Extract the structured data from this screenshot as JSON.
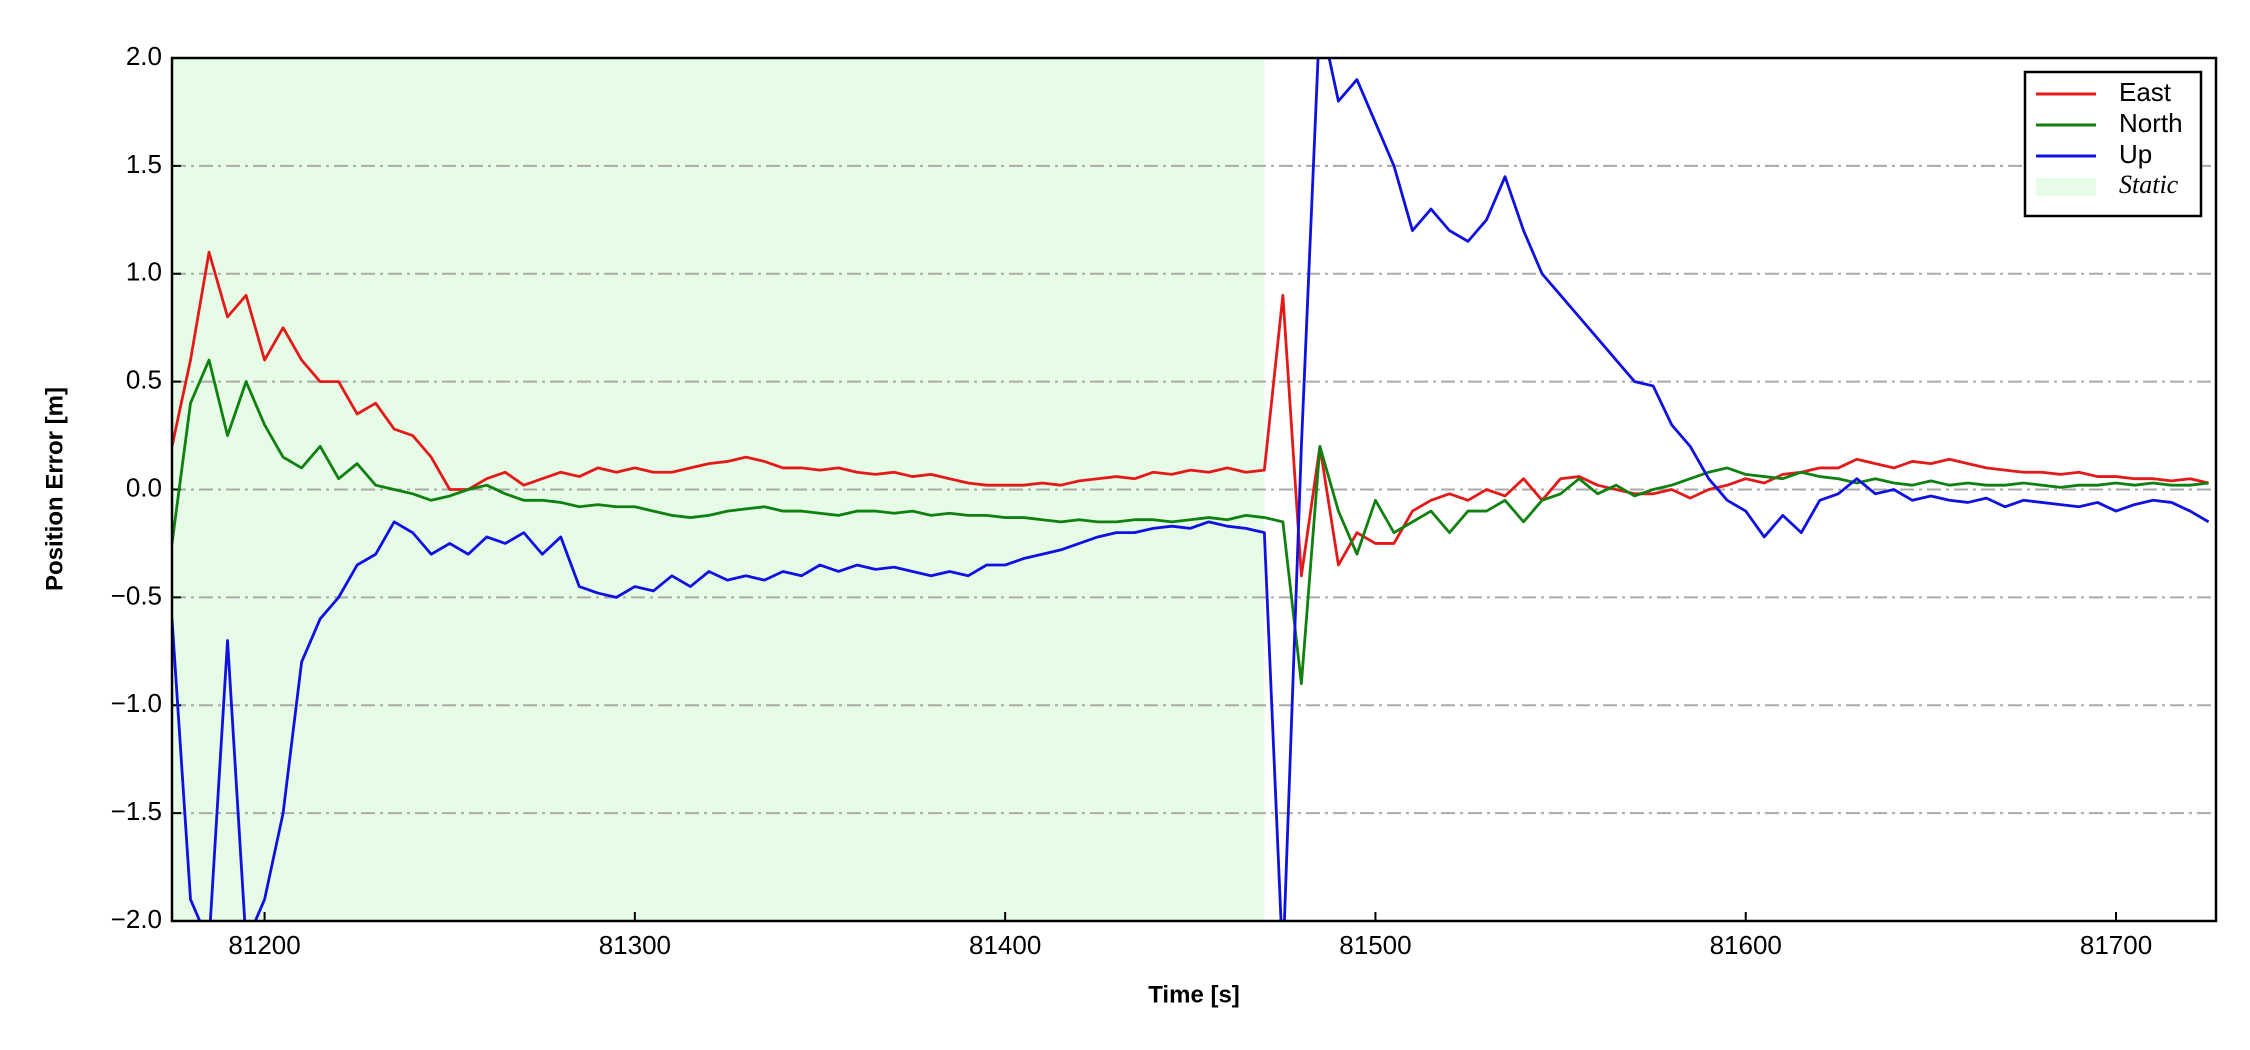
{
  "chart_data": {
    "type": "line",
    "xlabel": "Time [s]",
    "ylabel": "Position Error [m]",
    "x": [
      81175,
      81180,
      81185,
      81190,
      81195,
      81200,
      81205,
      81210,
      81215,
      81220,
      81225,
      81230,
      81235,
      81240,
      81245,
      81250,
      81255,
      81260,
      81265,
      81270,
      81275,
      81280,
      81285,
      81290,
      81295,
      81300,
      81305,
      81310,
      81315,
      81320,
      81325,
      81330,
      81335,
      81340,
      81345,
      81350,
      81355,
      81360,
      81365,
      81370,
      81375,
      81380,
      81385,
      81390,
      81395,
      81400,
      81405,
      81410,
      81415,
      81420,
      81425,
      81430,
      81435,
      81440,
      81445,
      81450,
      81455,
      81460,
      81465,
      81470,
      81475,
      81480,
      81485,
      81490,
      81495,
      81500,
      81505,
      81510,
      81515,
      81520,
      81525,
      81530,
      81535,
      81540,
      81545,
      81550,
      81555,
      81560,
      81565,
      81570,
      81575,
      81580,
      81585,
      81590,
      81595,
      81600,
      81605,
      81610,
      81615,
      81620,
      81625,
      81630,
      81635,
      81640,
      81645,
      81650,
      81655,
      81660,
      81665,
      81670,
      81675,
      81680,
      81685,
      81690,
      81695,
      81700,
      81705,
      81710,
      81715,
      81720,
      81725
    ],
    "series": [
      {
        "name": "East",
        "color": "#e31a1a",
        "values": [
          0.2,
          0.6,
          1.1,
          0.8,
          0.9,
          0.6,
          0.75,
          0.6,
          0.5,
          0.5,
          0.35,
          0.4,
          0.28,
          0.25,
          0.15,
          0.0,
          0.0,
          0.05,
          0.08,
          0.02,
          0.05,
          0.08,
          0.06,
          0.1,
          0.08,
          0.1,
          0.08,
          0.08,
          0.1,
          0.12,
          0.13,
          0.15,
          0.13,
          0.1,
          0.1,
          0.09,
          0.1,
          0.08,
          0.07,
          0.08,
          0.06,
          0.07,
          0.05,
          0.03,
          0.02,
          0.02,
          0.02,
          0.03,
          0.02,
          0.04,
          0.05,
          0.06,
          0.05,
          0.08,
          0.07,
          0.09,
          0.08,
          0.1,
          0.08,
          0.09,
          0.9,
          -0.4,
          0.2,
          -0.35,
          -0.2,
          -0.25,
          -0.25,
          -0.1,
          -0.05,
          -0.02,
          -0.05,
          0.0,
          -0.03,
          0.05,
          -0.05,
          0.05,
          0.06,
          0.02,
          0.0,
          -0.02,
          -0.02,
          0.0,
          -0.04,
          0.0,
          0.02,
          0.05,
          0.03,
          0.07,
          0.08,
          0.1,
          0.1,
          0.14,
          0.12,
          0.1,
          0.13,
          0.12,
          0.14,
          0.12,
          0.1,
          0.09,
          0.08,
          0.08,
          0.07,
          0.08,
          0.06,
          0.06,
          0.05,
          0.05,
          0.04,
          0.05,
          0.03
        ]
      },
      {
        "name": "North",
        "color": "#108010",
        "values": [
          -0.25,
          0.4,
          0.6,
          0.25,
          0.5,
          0.3,
          0.15,
          0.1,
          0.2,
          0.05,
          0.12,
          0.02,
          0.0,
          -0.02,
          -0.05,
          -0.03,
          0.0,
          0.02,
          -0.02,
          -0.05,
          -0.05,
          -0.06,
          -0.08,
          -0.07,
          -0.08,
          -0.08,
          -0.1,
          -0.12,
          -0.13,
          -0.12,
          -0.1,
          -0.09,
          -0.08,
          -0.1,
          -0.1,
          -0.11,
          -0.12,
          -0.1,
          -0.1,
          -0.11,
          -0.1,
          -0.12,
          -0.11,
          -0.12,
          -0.12,
          -0.13,
          -0.13,
          -0.14,
          -0.15,
          -0.14,
          -0.15,
          -0.15,
          -0.14,
          -0.14,
          -0.15,
          -0.14,
          -0.13,
          -0.14,
          -0.12,
          -0.13,
          -0.15,
          -0.9,
          0.2,
          -0.1,
          -0.3,
          -0.05,
          -0.2,
          -0.15,
          -0.1,
          -0.2,
          -0.1,
          -0.1,
          -0.05,
          -0.15,
          -0.05,
          -0.02,
          0.05,
          -0.02,
          0.02,
          -0.03,
          0.0,
          0.02,
          0.05,
          0.08,
          0.1,
          0.07,
          0.06,
          0.05,
          0.08,
          0.06,
          0.05,
          0.03,
          0.05,
          0.03,
          0.02,
          0.04,
          0.02,
          0.03,
          0.02,
          0.02,
          0.03,
          0.02,
          0.01,
          0.02,
          0.02,
          0.03,
          0.02,
          0.03,
          0.02,
          0.02,
          0.03
        ]
      },
      {
        "name": "Up",
        "color": "#1010e0",
        "values": [
          -0.6,
          -1.9,
          -2.1,
          -0.7,
          -2.1,
          -1.9,
          -1.5,
          -0.8,
          -0.6,
          -0.5,
          -0.35,
          -0.3,
          -0.15,
          -0.2,
          -0.3,
          -0.25,
          -0.3,
          -0.22,
          -0.25,
          -0.2,
          -0.3,
          -0.22,
          -0.45,
          -0.48,
          -0.5,
          -0.45,
          -0.47,
          -0.4,
          -0.45,
          -0.38,
          -0.42,
          -0.4,
          -0.42,
          -0.38,
          -0.4,
          -0.35,
          -0.38,
          -0.35,
          -0.37,
          -0.36,
          -0.38,
          -0.4,
          -0.38,
          -0.4,
          -0.35,
          -0.35,
          -0.32,
          -0.3,
          -0.28,
          -0.25,
          -0.22,
          -0.2,
          -0.2,
          -0.18,
          -0.17,
          -0.18,
          -0.15,
          -0.17,
          -0.18,
          -0.2,
          -2.2,
          0.2,
          2.2,
          1.8,
          1.9,
          1.7,
          1.5,
          1.2,
          1.3,
          1.2,
          1.15,
          1.25,
          1.45,
          1.2,
          1.0,
          0.9,
          0.8,
          0.7,
          0.6,
          0.5,
          0.48,
          0.3,
          0.2,
          0.05,
          -0.05,
          -0.1,
          -0.22,
          -0.12,
          -0.2,
          -0.05,
          -0.02,
          0.05,
          -0.02,
          0.0,
          -0.05,
          -0.03,
          -0.05,
          -0.06,
          -0.04,
          -0.08,
          -0.05,
          -0.06,
          -0.07,
          -0.08,
          -0.06,
          -0.1,
          -0.07,
          -0.05,
          -0.06,
          -0.1,
          -0.15
        ]
      }
    ],
    "static_span": {
      "label": "Static",
      "color": "#e6fce6",
      "x": [
        81175,
        81470
      ]
    },
    "xlim": [
      81175,
      81727
    ],
    "ylim": [
      -2.0,
      2.0
    ],
    "xticks": [
      81200,
      81300,
      81400,
      81500,
      81600,
      81700
    ],
    "yticks": [
      {
        "value": -2.0,
        "label": "−2.0"
      },
      {
        "value": -1.5,
        "label": "−1.5"
      },
      {
        "value": -1.0,
        "label": "−1.0"
      },
      {
        "value": -0.5,
        "label": "−0.5"
      },
      {
        "value": 0.0,
        "label": "0.0"
      },
      {
        "value": 0.5,
        "label": "0.5"
      },
      {
        "value": 1.0,
        "label": "1.0"
      },
      {
        "value": 1.5,
        "label": "1.5"
      },
      {
        "value": 2.0,
        "label": "2.0"
      }
    ],
    "grid": true,
    "legend": "upper right"
  }
}
